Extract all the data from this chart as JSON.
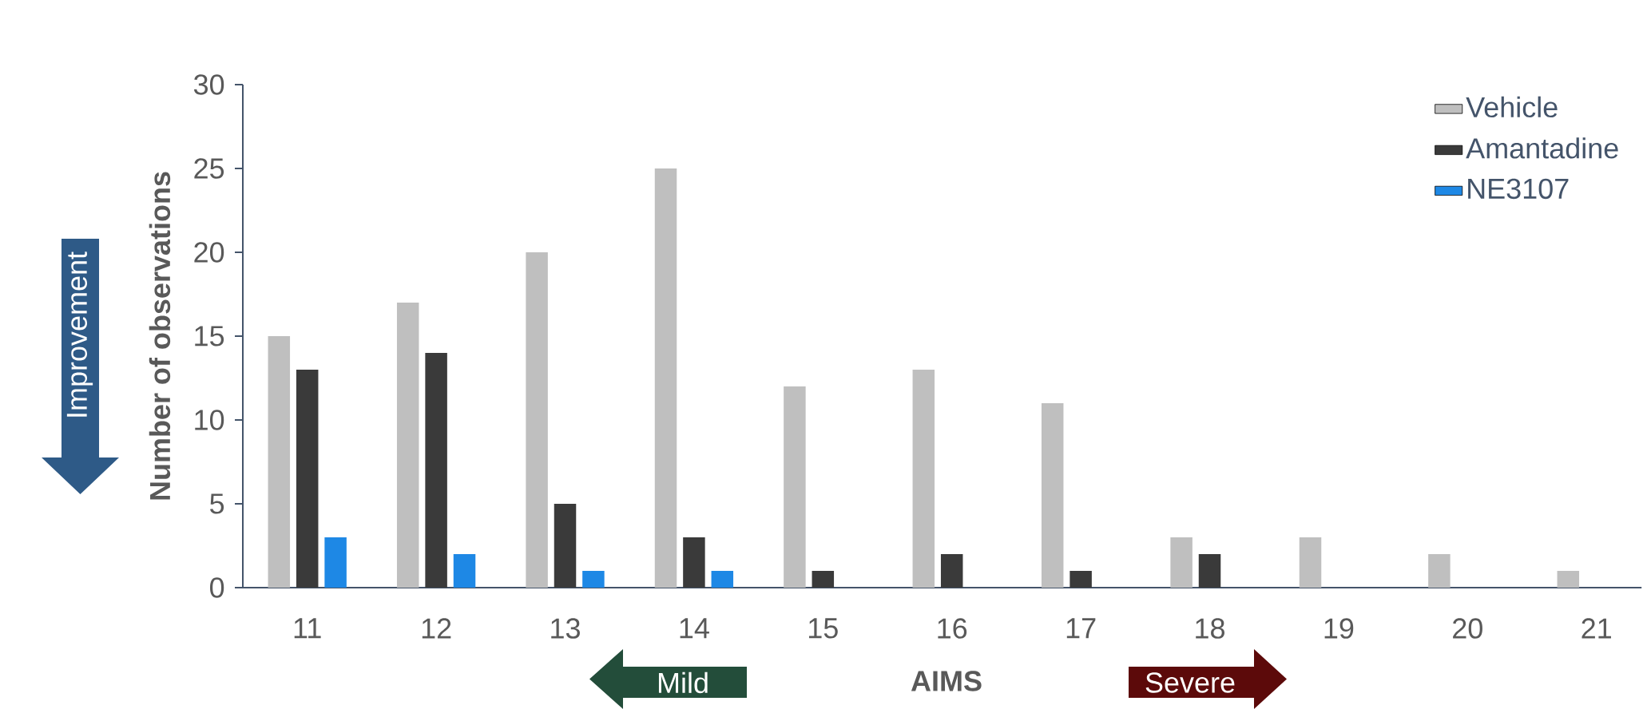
{
  "chart_data": {
    "type": "bar",
    "xlabel": "AIMS",
    "ylabel": "Number of observations",
    "categories": [
      "11",
      "12",
      "13",
      "14",
      "15",
      "16",
      "17",
      "18",
      "19",
      "20",
      "21"
    ],
    "series": [
      {
        "name": "Vehicle",
        "color": "#bfbfbf",
        "values": [
          15,
          17,
          20,
          25,
          12,
          13,
          11,
          3,
          3,
          2,
          1
        ]
      },
      {
        "name": "Amantadine",
        "color": "#3a3a3a",
        "values": [
          13,
          14,
          5,
          3,
          1,
          2,
          1,
          2,
          0,
          0,
          0
        ]
      },
      {
        "name": "NE3107",
        "color": "#1e88e5",
        "values": [
          3,
          2,
          1,
          1,
          0,
          0,
          0,
          0,
          0,
          0,
          0
        ]
      }
    ],
    "ylim": [
      0,
      30
    ],
    "yticks": [
      0,
      5,
      10,
      15,
      20,
      25,
      30
    ],
    "grid": false,
    "legend": "top right",
    "annotations": [
      "Improvement",
      "Mild",
      "Severe"
    ]
  }
}
